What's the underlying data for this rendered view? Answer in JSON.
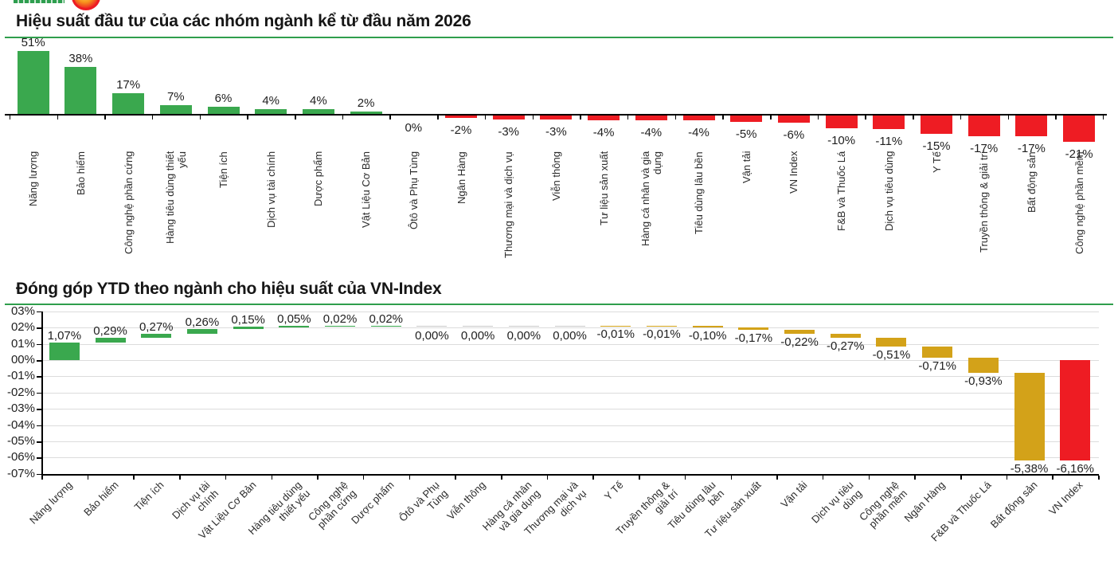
{
  "header": {
    "logo_icon": "company-logo-circle-fragment",
    "logo_text_icon": "company-logo-text-fragment"
  },
  "colors": {
    "positive_green": "#3aa84e",
    "negative_red": "#ee1c23",
    "decrease_gold": "#d3a219",
    "divider_green": "#2f9e4c",
    "gridline": "#dcdcdc",
    "zero_connector": "#c9c9c9"
  },
  "chart_data": [
    {
      "type": "bar",
      "title": "Hiệu suất đầu tư của các nhóm ngành kể từ đầu năm 2026",
      "categories": [
        "Năng lượng",
        "Bảo hiểm",
        "Công nghệ phần cứng",
        "Hàng tiêu dùng thiết\nyếu",
        "Tiện ích",
        "Dịch vụ tài chính",
        "Dược phẩm",
        "Vật Liệu Cơ Bản",
        "Ôtô và Phụ Tùng",
        "Ngân Hàng",
        "Thương mại và dịch vụ",
        "Viễn thông",
        "Tư liệu sản xuất",
        "Hàng cá nhân và gia\ndụng",
        "Tiêu dùng lâu bền",
        "Vận tải",
        "VN Index",
        "F&B và Thuốc Lá",
        "Dịch vụ tiêu dùng",
        "Y Tế",
        "Truyền thông & giải trí",
        "Bất động sản",
        "Công nghệ phần mềm"
      ],
      "values": [
        51,
        38,
        17,
        7,
        6,
        4,
        4,
        2,
        0,
        -2,
        -3,
        -3,
        -4,
        -4,
        -4,
        -5,
        -6,
        -10,
        -11,
        -15,
        -17,
        -17,
        -21
      ],
      "value_labels": [
        "51%",
        "38%",
        "17%",
        "7%",
        "6%",
        "4%",
        "4%",
        "2%",
        "0%",
        "-2%",
        "-3%",
        "-3%",
        "-4%",
        "-4%",
        "-4%",
        "-5%",
        "-6%",
        "-10%",
        "-11%",
        "-15%",
        "-17%",
        "-17%",
        "-21%"
      ],
      "xlabel": "",
      "ylabel": "",
      "ylim": [
        -25,
        55
      ],
      "grid": false,
      "legend": "none",
      "bar_colors": "green if positive, red if negative"
    },
    {
      "type": "waterfall",
      "title": "Đóng góp YTD theo ngành cho hiệu suất của VN-Index",
      "categories": [
        "Năng lượng",
        "Bảo hiểm",
        "Tiện ích",
        "Dịch vụ tài\nchính",
        "Vật Liệu Cơ Bản",
        "Hàng tiêu dùng\nthiết yếu",
        "Công nghệ\nphần cứng",
        "Dược phẩm",
        "Ôtô và Phụ\nTùng",
        "Viễn thông",
        "Hàng cá nhân\nvà gia dụng",
        "Thương mại và\ndịch vụ",
        "Y Tế",
        "Truyền thông &\ngiải trí",
        "Tiêu dùng lâu\nbền",
        "Tư liệu sản xuất",
        "Vận tải",
        "Dịch vụ tiêu\ndùng",
        "Công nghệ\nphần mềm",
        "Ngân Hàng",
        "F&B và Thuốc Lá",
        "Bất động sản",
        "VN Index"
      ],
      "values": [
        1.07,
        0.29,
        0.27,
        0.26,
        0.15,
        0.05,
        0.02,
        0.02,
        0.0,
        0.0,
        0.0,
        0.0,
        -0.01,
        -0.01,
        -0.1,
        -0.17,
        -0.22,
        -0.27,
        -0.51,
        -0.71,
        -0.93,
        -5.38,
        -6.16
      ],
      "value_labels": [
        "1,07%",
        "0,29%",
        "0,27%",
        "0,26%",
        "0,15%",
        "0,05%",
        "0,02%",
        "0,02%",
        "0,00%",
        "0,00%",
        "0,00%",
        "0,00%",
        "-0,01%",
        "-0,01%",
        "-0,10%",
        "-0,17%",
        "-0,22%",
        "-0,27%",
        "-0,51%",
        "-0,71%",
        "-0,93%",
        "-5,38%",
        "-6,16%"
      ],
      "total_flags": [
        false,
        false,
        false,
        false,
        false,
        false,
        false,
        false,
        false,
        false,
        false,
        false,
        false,
        false,
        false,
        false,
        false,
        false,
        false,
        false,
        false,
        false,
        true
      ],
      "ytick_labels": [
        "03%",
        "02%",
        "01%",
        "00%",
        "-01%",
        "-02%",
        "-03%",
        "-04%",
        "-05%",
        "-06%",
        "-07%"
      ],
      "ytick_values": [
        3,
        2,
        1,
        0,
        -1,
        -2,
        -3,
        -4,
        -5,
        -6,
        -7
      ],
      "xlabel": "",
      "ylabel": "",
      "ylim": [
        -7,
        3
      ],
      "grid": true,
      "legend": "none",
      "bar_colors": "green if increase, gold if decrease, red for VN Index total"
    }
  ]
}
